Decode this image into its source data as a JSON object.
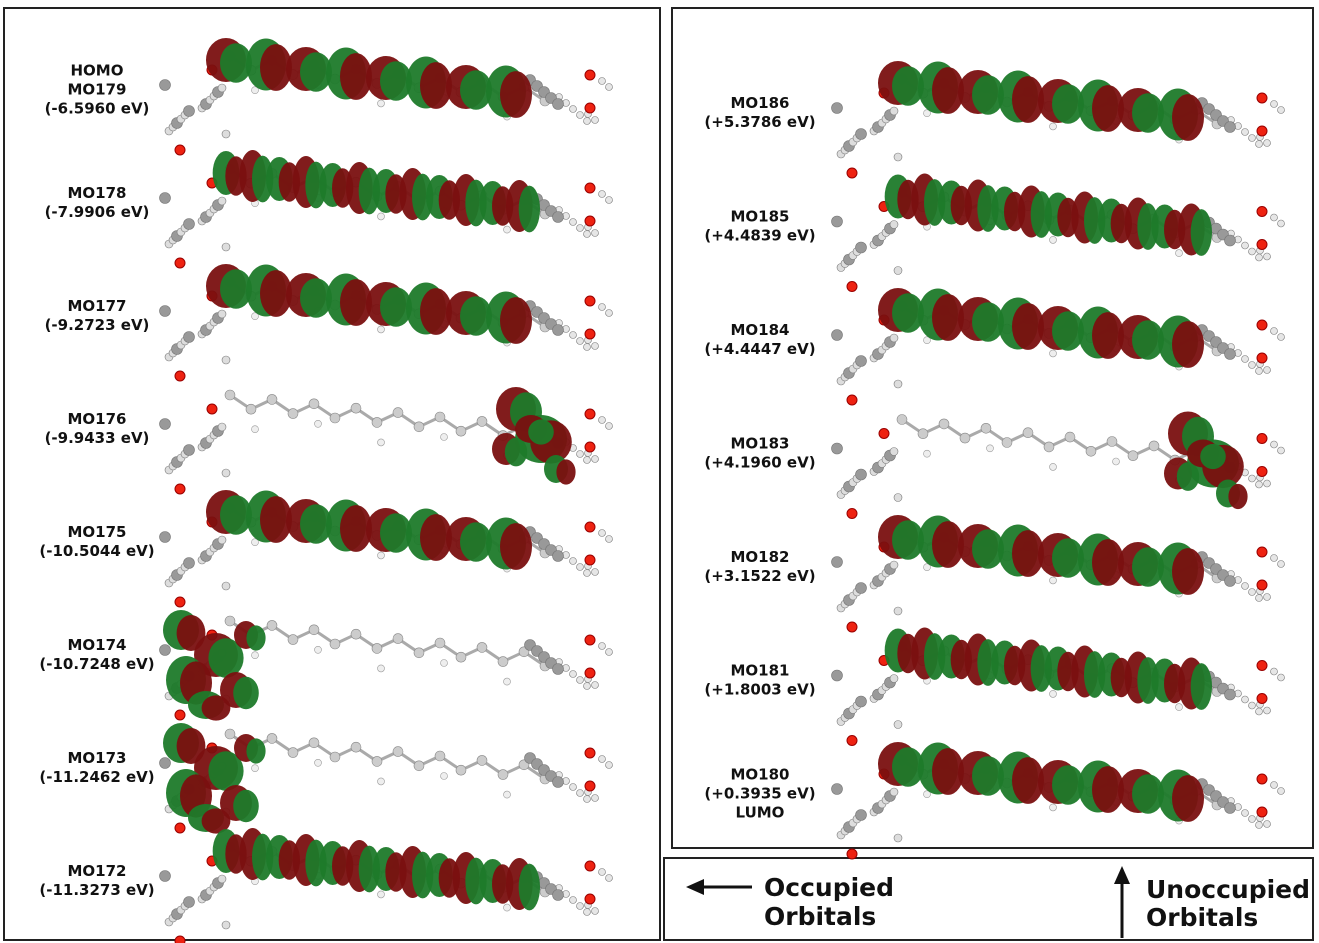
{
  "left_panel": {
    "orbitals": [
      {
        "lines": [
          "HOMO",
          "MO179",
          "(-6.5960 eV)"
        ]
      },
      {
        "lines": [
          "MO178",
          "(-7.9906 eV)"
        ]
      },
      {
        "lines": [
          "MO177",
          "(-9.2723 eV)"
        ]
      },
      {
        "lines": [
          "MO176",
          "(-9.9433 eV)"
        ]
      },
      {
        "lines": [
          "MO175",
          "(-10.5044 eV)"
        ]
      },
      {
        "lines": [
          "MO174",
          "(-10.7248 eV)"
        ]
      },
      {
        "lines": [
          "MO173",
          "(-11.2462 eV)"
        ]
      },
      {
        "lines": [
          "MO172",
          "(-11.3273 eV)"
        ]
      }
    ]
  },
  "right_panel": {
    "orbitals": [
      {
        "lines": [
          "MO186",
          "(+5.3786 eV)"
        ]
      },
      {
        "lines": [
          "MO185",
          "(+4.4839 eV)"
        ]
      },
      {
        "lines": [
          "MO184",
          "(+4.4447 eV)"
        ]
      },
      {
        "lines": [
          "MO183",
          "(+4.1960 eV)"
        ]
      },
      {
        "lines": [
          "MO182",
          "(+3.1522 eV)"
        ]
      },
      {
        "lines": [
          "MO181",
          "(+1.8003 eV)"
        ]
      },
      {
        "lines": [
          "MO180",
          "(+0.3935 eV)",
          "LUMO"
        ]
      }
    ]
  },
  "legend": {
    "occupied": [
      "Occupied",
      "Orbitals"
    ],
    "unoccupied": [
      "Unoccupied",
      "Orbitals"
    ]
  }
}
